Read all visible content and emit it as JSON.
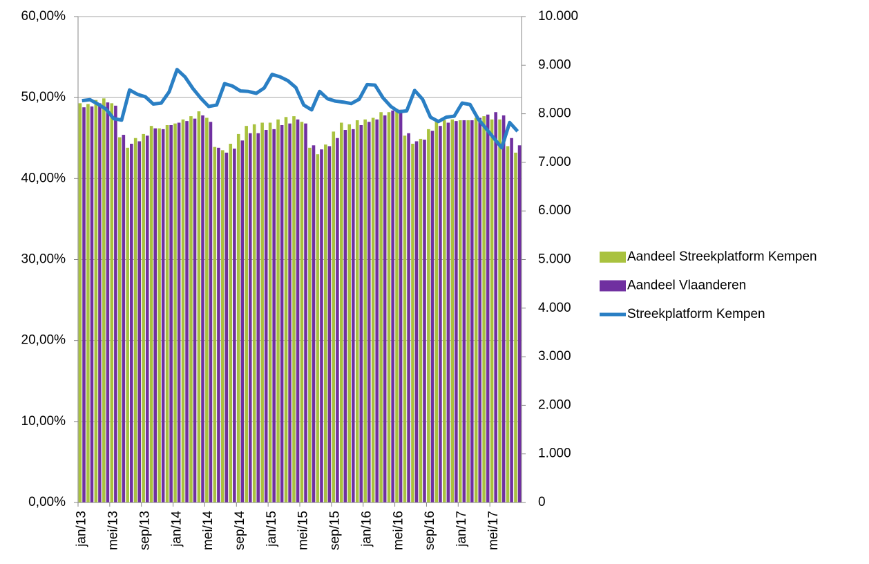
{
  "chart_data": {
    "type": "bar",
    "categories": [
      "jan/13",
      null,
      null,
      null,
      "mei/13",
      null,
      null,
      null,
      "sep/13",
      null,
      null,
      null,
      "jan/14",
      null,
      null,
      null,
      "mei/14",
      null,
      null,
      null,
      "sep/14",
      null,
      null,
      null,
      "jan/15",
      null,
      null,
      null,
      "mei/15",
      null,
      null,
      null,
      "sep/15",
      null,
      null,
      null,
      "jan/16",
      null,
      null,
      null,
      "mei/16",
      null,
      null,
      null,
      "sep/16",
      null,
      null,
      null,
      "jan/17",
      null,
      null,
      null,
      "mei/17",
      null,
      null,
      null
    ],
    "series": [
      {
        "name": "Aandeel Streekplatform Kempen",
        "type": "bar",
        "color": "#a9c23f",
        "values": [
          49.3,
          49.2,
          49.7,
          49.9,
          49.3,
          45.1,
          43.8,
          45,
          45.5,
          46.5,
          46.2,
          46.6,
          46.8,
          47.3,
          47.7,
          48.3,
          47.5,
          43.9,
          43.5,
          44.3,
          45.5,
          46.5,
          46.7,
          46.9,
          46.9,
          47.3,
          47.6,
          47.7,
          47.0,
          43.8,
          43.0,
          44.2,
          45.8,
          46.9,
          46.7,
          47.2,
          47.3,
          47.5,
          48.2,
          48.2,
          48.6,
          45.3,
          44.3,
          44.9,
          46.1,
          47.0,
          47.2,
          47.3,
          47.2,
          47.2,
          47.5,
          47.7,
          47.3,
          47.3,
          44.0,
          43.2
        ]
      },
      {
        "name": "Aandeel Vlaanderen",
        "type": "bar",
        "color": "#7030a0",
        "values": [
          48.8,
          48.9,
          49.3,
          49.4,
          49.0,
          45.4,
          44.3,
          44.6,
          45.3,
          46.2,
          46.1,
          46.6,
          46.9,
          47.1,
          47.4,
          47.8,
          47.0,
          43.8,
          43.2,
          43.7,
          44.7,
          45.6,
          45.6,
          46.0,
          46.1,
          46.6,
          46.8,
          47.3,
          46.8,
          44.1,
          43.6,
          44.0,
          45.0,
          46.0,
          46.1,
          46.6,
          47.0,
          47.3,
          47.8,
          48.4,
          48.5,
          45.6,
          44.6,
          44.8,
          45.9,
          46.5,
          46.9,
          47.1,
          47.2,
          47.2,
          47.5,
          47.9,
          48.2,
          47.8,
          45.0,
          44.1
        ]
      },
      {
        "name": "Streekplatform Kempen",
        "type": "line",
        "axis": "y2",
        "color": "#2a7fc4",
        "values": [
          8270,
          8290,
          8200,
          8100,
          7900,
          7870,
          8490,
          8400,
          8350,
          8200,
          8220,
          8450,
          8910,
          8760,
          8520,
          8320,
          8150,
          8180,
          8620,
          8570,
          8470,
          8460,
          8420,
          8530,
          8810,
          8760,
          8680,
          8540,
          8180,
          8080,
          8460,
          8310,
          8260,
          8240,
          8210,
          8300,
          8600,
          8590,
          8330,
          8150,
          8040,
          8060,
          8480,
          8300,
          7930,
          7840,
          7930,
          7950,
          8220,
          8190,
          7900,
          7700,
          7500,
          7300,
          7820,
          7640
        ]
      }
    ],
    "ylim": [
      0,
      60
    ],
    "yticks": [
      {
        "value": 0,
        "label": "0,00%"
      },
      {
        "value": 10,
        "label": "10,00%"
      },
      {
        "value": 20,
        "label": "20,00%"
      },
      {
        "value": 30,
        "label": "30,00%"
      },
      {
        "value": 40,
        "label": "40,00%"
      },
      {
        "value": 50,
        "label": "50,00%"
      },
      {
        "value": 60,
        "label": "60,00%"
      }
    ],
    "y2lim": [
      0,
      10000
    ],
    "y2ticks": [
      0,
      {
        "value": 1000,
        "label": "1.000"
      },
      {
        "value": 2000,
        "label": "2.000"
      },
      {
        "value": 3000,
        "label": "3.000"
      },
      {
        "value": 4000,
        "label": "4.000"
      },
      {
        "value": 5000,
        "label": "5.000"
      },
      {
        "value": 6000,
        "label": "6.000"
      },
      {
        "value": 7000,
        "label": "7.000"
      },
      {
        "value": 8000,
        "label": "8.000"
      },
      {
        "value": 9000,
        "label": "9.000"
      },
      {
        "value": 10000,
        "label": "10.000"
      }
    ],
    "grid": true,
    "legend": "right"
  }
}
